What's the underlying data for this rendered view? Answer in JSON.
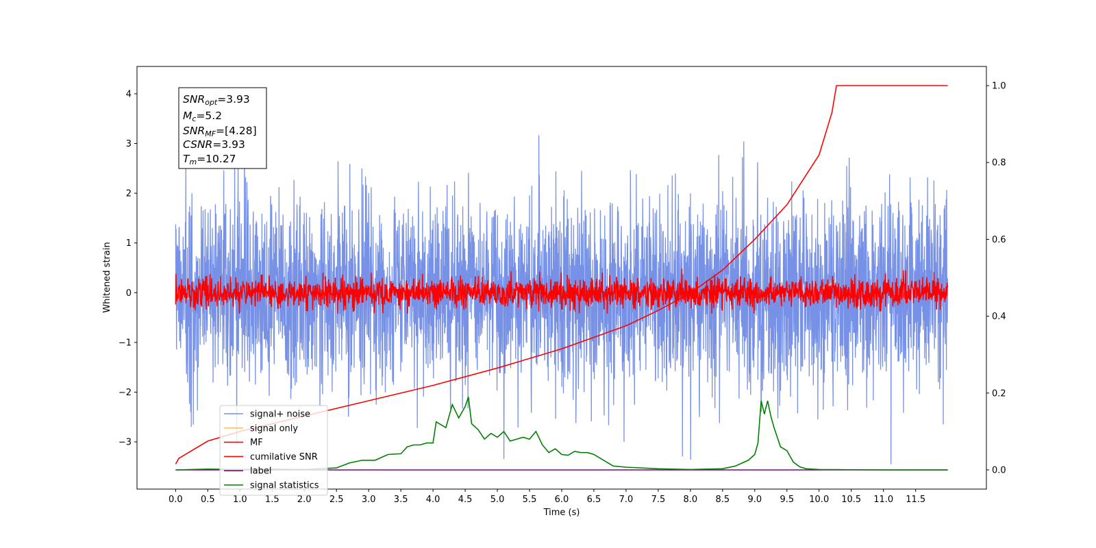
{
  "chart_data": {
    "type": "line",
    "xlabel": "Time (s)",
    "ylabel": "Whitened strain",
    "xlim": [
      -0.6,
      12.6
    ],
    "ylim": [
      -3.95,
      4.55
    ],
    "ylim_right": [
      -0.05,
      1.05
    ],
    "grid": false,
    "legend_position": "lower-left",
    "x_ticks": [
      "0.0",
      "0.5",
      "1.0",
      "1.5",
      "2.0",
      "2.5",
      "3.0",
      "3.5",
      "4.0",
      "4.5",
      "5.0",
      "5.5",
      "6.0",
      "6.5",
      "7.0",
      "7.5",
      "8.0",
      "8.5",
      "9.0",
      "9.5",
      "10.0",
      "10.5",
      "11.0",
      "11.5"
    ],
    "y_ticks": [
      "−3",
      "−2",
      "−1",
      "0",
      "1",
      "2",
      "3",
      "4"
    ],
    "y_ticks_right": [
      "0.0",
      "0.2",
      "0.4",
      "0.6",
      "0.8",
      "1.0"
    ],
    "annotation": {
      "snr_opt": {
        "main": "SNR",
        "sub": "opt",
        "value": "=3.93"
      },
      "mc": {
        "main": "M",
        "sub": "c",
        "value": "=5.2"
      },
      "snr_mf": {
        "main": "SNR",
        "sub": "MF",
        "value": "=[4.28]"
      },
      "csnr": {
        "main": "CSNR",
        "sub": "",
        "value": "=3.93"
      },
      "tm": {
        "main": "T",
        "sub": "m",
        "value": "=10.27"
      }
    },
    "series": [
      {
        "name": "signal+ noise",
        "color": "#7791e6",
        "axis": "left",
        "description": "whitened noise, amplitude roughly ±2.5 with peaks to 4.2",
        "x_range": [
          0,
          12
        ],
        "amplitude_sd": 0.95
      },
      {
        "name": "signal only",
        "color": "#ffc069",
        "axis": "left",
        "x": [
          10.0,
          10.15,
          10.27
        ],
        "y": [
          0.05,
          0.15,
          0.25
        ]
      },
      {
        "name": "MF",
        "color": "#ff0000",
        "axis": "left",
        "description": "matched filter output, noisy around 0, amplitude about ±0.4",
        "x_range": [
          0,
          12
        ],
        "amplitude_sd": 0.15
      },
      {
        "name": "cumilative SNR",
        "color": "#ff0000",
        "axis": "right",
        "x": [
          0.0,
          0.05,
          0.5,
          1.0,
          2.0,
          3.0,
          4.0,
          5.0,
          6.0,
          7.0,
          7.5,
          8.0,
          8.5,
          9.0,
          9.5,
          10.0,
          10.2,
          10.27,
          12.0
        ],
        "y": [
          0.015,
          0.03,
          0.075,
          0.1,
          0.14,
          0.18,
          0.22,
          0.265,
          0.315,
          0.375,
          0.415,
          0.46,
          0.52,
          0.6,
          0.69,
          0.82,
          0.93,
          1.0,
          1.0
        ]
      },
      {
        "name": "label",
        "color": "#800080",
        "axis": "right",
        "x": [
          0.0,
          12.0
        ],
        "y": [
          0.0,
          0.0
        ]
      },
      {
        "name": "signal statistics",
        "color": "#008000",
        "axis": "right",
        "x": [
          0.0,
          0.5,
          1.0,
          1.5,
          2.0,
          2.5,
          2.7,
          2.9,
          3.1,
          3.3,
          3.5,
          3.6,
          3.7,
          3.8,
          3.9,
          4.0,
          4.05,
          4.2,
          4.3,
          4.4,
          4.5,
          4.55,
          4.6,
          4.7,
          4.8,
          4.9,
          5.0,
          5.1,
          5.2,
          5.3,
          5.4,
          5.5,
          5.6,
          5.7,
          5.8,
          5.9,
          6.0,
          6.1,
          6.2,
          6.3,
          6.4,
          6.5,
          6.6,
          6.8,
          7.0,
          7.5,
          8.0,
          8.5,
          8.7,
          8.9,
          9.0,
          9.05,
          9.1,
          9.15,
          9.2,
          9.25,
          9.3,
          9.4,
          9.5,
          9.6,
          9.7,
          9.8,
          10.0,
          11.0,
          12.0
        ],
        "y": [
          0.0,
          0.002,
          0.001,
          0.002,
          0.001,
          0.005,
          0.018,
          0.025,
          0.025,
          0.04,
          0.042,
          0.06,
          0.065,
          0.065,
          0.07,
          0.07,
          0.125,
          0.11,
          0.17,
          0.135,
          0.165,
          0.19,
          0.12,
          0.105,
          0.08,
          0.095,
          0.085,
          0.1,
          0.075,
          0.08,
          0.085,
          0.08,
          0.1,
          0.065,
          0.045,
          0.055,
          0.04,
          0.038,
          0.048,
          0.045,
          0.045,
          0.04,
          0.03,
          0.01,
          0.007,
          0.003,
          0.001,
          0.003,
          0.01,
          0.025,
          0.04,
          0.07,
          0.18,
          0.145,
          0.18,
          0.14,
          0.11,
          0.06,
          0.05,
          0.02,
          0.008,
          0.003,
          0.001,
          0.0,
          0.0
        ]
      }
    ],
    "legend": [
      "signal+ noise",
      "signal only",
      "MF",
      "cumilative SNR",
      "label",
      "signal statistics"
    ]
  }
}
